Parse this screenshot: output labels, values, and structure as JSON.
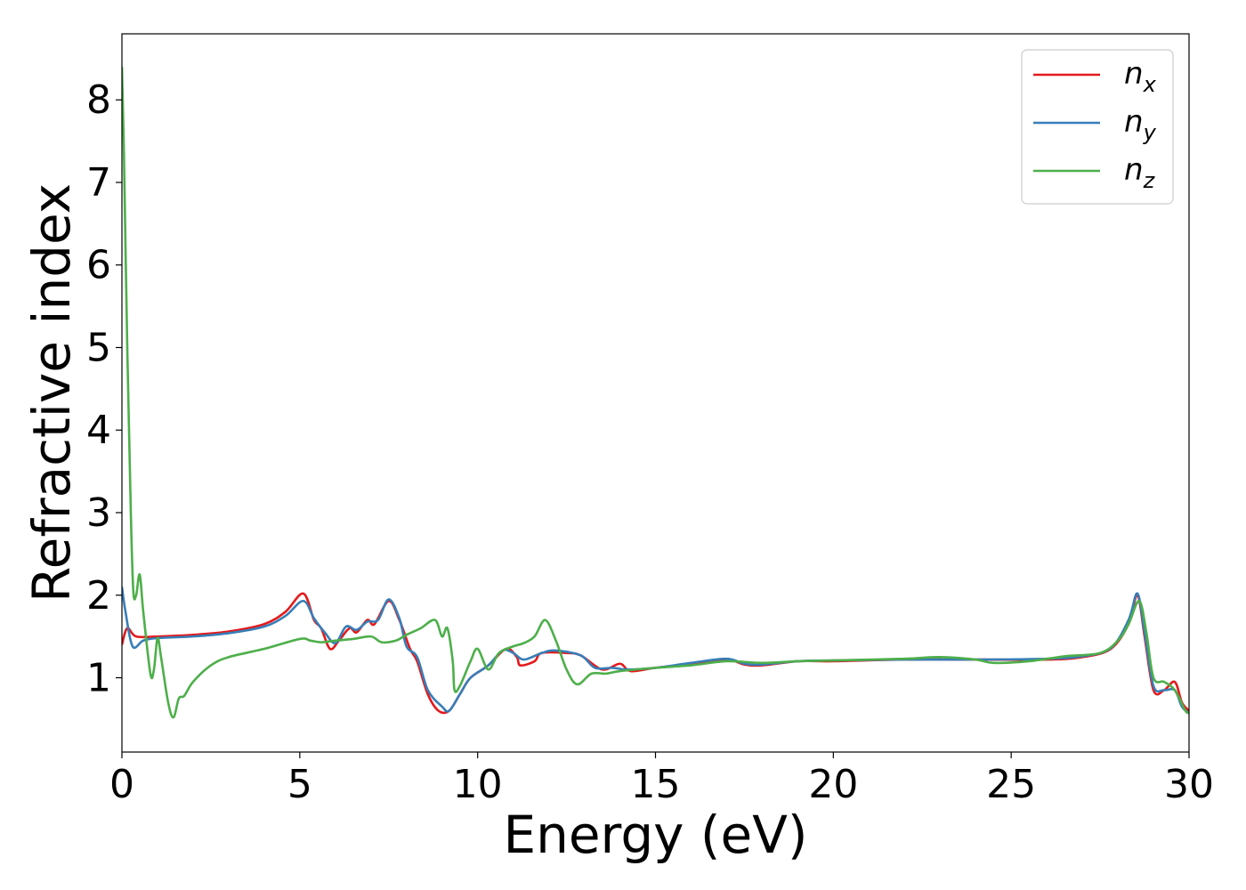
{
  "chart_data": {
    "type": "line",
    "xlabel": "Energy (eV)",
    "ylabel": "Refractive index",
    "xlim": [
      0,
      30
    ],
    "ylim": [
      0.1,
      8.8
    ],
    "xticks": [
      0,
      5,
      10,
      15,
      20,
      25,
      30
    ],
    "yticks": [
      1,
      2,
      3,
      4,
      5,
      6,
      7,
      8
    ],
    "grid": false,
    "legend_position": "top-right",
    "series": [
      {
        "name": "n_x",
        "base": "n",
        "sub": "x",
        "color": "#e41a1c",
        "points": [
          [
            0,
            1.4
          ],
          [
            0.15,
            1.6
          ],
          [
            0.4,
            1.5
          ],
          [
            1,
            1.5
          ],
          [
            2,
            1.52
          ],
          [
            3,
            1.56
          ],
          [
            4,
            1.65
          ],
          [
            4.6,
            1.8
          ],
          [
            5.1,
            2.02
          ],
          [
            5.4,
            1.7
          ],
          [
            5.6,
            1.6
          ],
          [
            5.85,
            1.35
          ],
          [
            6.1,
            1.45
          ],
          [
            6.4,
            1.6
          ],
          [
            6.6,
            1.55
          ],
          [
            6.9,
            1.7
          ],
          [
            7.1,
            1.65
          ],
          [
            7.5,
            1.93
          ],
          [
            7.8,
            1.7
          ],
          [
            8.1,
            1.35
          ],
          [
            8.3,
            1.2
          ],
          [
            8.6,
            0.8
          ],
          [
            8.9,
            0.6
          ],
          [
            9.2,
            0.6
          ],
          [
            9.5,
            0.8
          ],
          [
            9.8,
            1.0
          ],
          [
            10.3,
            1.15
          ],
          [
            10.8,
            1.35
          ],
          [
            11.1,
            1.25
          ],
          [
            11.2,
            1.15
          ],
          [
            11.6,
            1.2
          ],
          [
            11.8,
            1.3
          ],
          [
            12.5,
            1.3
          ],
          [
            12.9,
            1.27
          ],
          [
            13.5,
            1.1
          ],
          [
            14.0,
            1.17
          ],
          [
            14.3,
            1.08
          ],
          [
            15.0,
            1.12
          ],
          [
            16.0,
            1.17
          ],
          [
            17.0,
            1.22
          ],
          [
            17.5,
            1.16
          ],
          [
            18.0,
            1.15
          ],
          [
            19.0,
            1.2
          ],
          [
            20.0,
            1.2
          ],
          [
            22.0,
            1.22
          ],
          [
            24.0,
            1.22
          ],
          [
            26.0,
            1.22
          ],
          [
            27.0,
            1.25
          ],
          [
            27.8,
            1.35
          ],
          [
            28.3,
            1.65
          ],
          [
            28.55,
            2.0
          ],
          [
            28.75,
            1.5
          ],
          [
            29.0,
            0.85
          ],
          [
            29.3,
            0.85
          ],
          [
            29.6,
            0.95
          ],
          [
            29.8,
            0.7
          ],
          [
            30,
            0.6
          ]
        ]
      },
      {
        "name": "n_y",
        "base": "n",
        "sub": "y",
        "color": "#377eb8",
        "points": [
          [
            0,
            2.1
          ],
          [
            0.1,
            1.8
          ],
          [
            0.3,
            1.38
          ],
          [
            0.6,
            1.45
          ],
          [
            1,
            1.48
          ],
          [
            2,
            1.5
          ],
          [
            3,
            1.54
          ],
          [
            4,
            1.62
          ],
          [
            4.6,
            1.75
          ],
          [
            5.1,
            1.93
          ],
          [
            5.4,
            1.72
          ],
          [
            5.7,
            1.55
          ],
          [
            6.0,
            1.42
          ],
          [
            6.3,
            1.62
          ],
          [
            6.6,
            1.58
          ],
          [
            6.9,
            1.68
          ],
          [
            7.2,
            1.7
          ],
          [
            7.5,
            1.95
          ],
          [
            7.8,
            1.72
          ],
          [
            8.0,
            1.38
          ],
          [
            8.3,
            1.25
          ],
          [
            8.6,
            0.85
          ],
          [
            9.0,
            0.65
          ],
          [
            9.2,
            0.6
          ],
          [
            9.5,
            0.8
          ],
          [
            9.8,
            1.0
          ],
          [
            10.3,
            1.15
          ],
          [
            10.7,
            1.33
          ],
          [
            11.0,
            1.3
          ],
          [
            11.3,
            1.22
          ],
          [
            11.8,
            1.3
          ],
          [
            12.2,
            1.33
          ],
          [
            12.9,
            1.27
          ],
          [
            13.3,
            1.12
          ],
          [
            13.8,
            1.12
          ],
          [
            14.2,
            1.1
          ],
          [
            15.0,
            1.12
          ],
          [
            16.0,
            1.18
          ],
          [
            17.0,
            1.23
          ],
          [
            17.5,
            1.17
          ],
          [
            18.0,
            1.16
          ],
          [
            19.0,
            1.2
          ],
          [
            20.0,
            1.21
          ],
          [
            22.0,
            1.22
          ],
          [
            24.0,
            1.22
          ],
          [
            26.0,
            1.23
          ],
          [
            27.0,
            1.26
          ],
          [
            27.8,
            1.36
          ],
          [
            28.3,
            1.7
          ],
          [
            28.55,
            2.02
          ],
          [
            28.75,
            1.55
          ],
          [
            29.0,
            0.9
          ],
          [
            29.3,
            0.85
          ],
          [
            29.6,
            0.85
          ],
          [
            29.8,
            0.65
          ],
          [
            30,
            0.57
          ]
        ]
      },
      {
        "name": "n_z",
        "base": "n",
        "sub": "z",
        "color": "#4daf4a",
        "points": [
          [
            0,
            8.4
          ],
          [
            0.05,
            7.5
          ],
          [
            0.15,
            5.0
          ],
          [
            0.25,
            3.0
          ],
          [
            0.32,
            2.05
          ],
          [
            0.4,
            2.0
          ],
          [
            0.5,
            2.25
          ],
          [
            0.6,
            1.8
          ],
          [
            0.8,
            1.05
          ],
          [
            0.9,
            1.1
          ],
          [
            1.0,
            1.48
          ],
          [
            1.1,
            1.25
          ],
          [
            1.3,
            0.7
          ],
          [
            1.45,
            0.52
          ],
          [
            1.6,
            0.75
          ],
          [
            1.75,
            0.78
          ],
          [
            2.0,
            0.95
          ],
          [
            2.5,
            1.15
          ],
          [
            3.0,
            1.25
          ],
          [
            4.0,
            1.35
          ],
          [
            5.0,
            1.47
          ],
          [
            5.3,
            1.45
          ],
          [
            5.6,
            1.43
          ],
          [
            6.0,
            1.45
          ],
          [
            6.5,
            1.47
          ],
          [
            7.0,
            1.5
          ],
          [
            7.3,
            1.43
          ],
          [
            7.7,
            1.45
          ],
          [
            8.0,
            1.52
          ],
          [
            8.4,
            1.6
          ],
          [
            8.8,
            1.7
          ],
          [
            9.0,
            1.5
          ],
          [
            9.15,
            1.6
          ],
          [
            9.3,
            1.2
          ],
          [
            9.35,
            0.85
          ],
          [
            9.5,
            0.9
          ],
          [
            9.8,
            1.2
          ],
          [
            10.0,
            1.35
          ],
          [
            10.3,
            1.1
          ],
          [
            10.6,
            1.3
          ],
          [
            11.0,
            1.38
          ],
          [
            11.3,
            1.42
          ],
          [
            11.6,
            1.5
          ],
          [
            11.9,
            1.7
          ],
          [
            12.2,
            1.45
          ],
          [
            12.5,
            1.1
          ],
          [
            12.8,
            0.92
          ],
          [
            13.2,
            1.05
          ],
          [
            13.6,
            1.05
          ],
          [
            14.0,
            1.08
          ],
          [
            15.0,
            1.12
          ],
          [
            16.0,
            1.15
          ],
          [
            17.0,
            1.2
          ],
          [
            18.0,
            1.18
          ],
          [
            19.0,
            1.2
          ],
          [
            20.0,
            1.21
          ],
          [
            22.0,
            1.23
          ],
          [
            23.0,
            1.25
          ],
          [
            24.0,
            1.22
          ],
          [
            24.5,
            1.18
          ],
          [
            25.5,
            1.2
          ],
          [
            26.5,
            1.26
          ],
          [
            27.5,
            1.3
          ],
          [
            28.0,
            1.45
          ],
          [
            28.3,
            1.65
          ],
          [
            28.6,
            1.93
          ],
          [
            28.8,
            1.55
          ],
          [
            29.0,
            1.0
          ],
          [
            29.3,
            0.95
          ],
          [
            29.6,
            0.85
          ],
          [
            29.9,
            0.6
          ],
          [
            30,
            0.58
          ]
        ]
      }
    ]
  }
}
